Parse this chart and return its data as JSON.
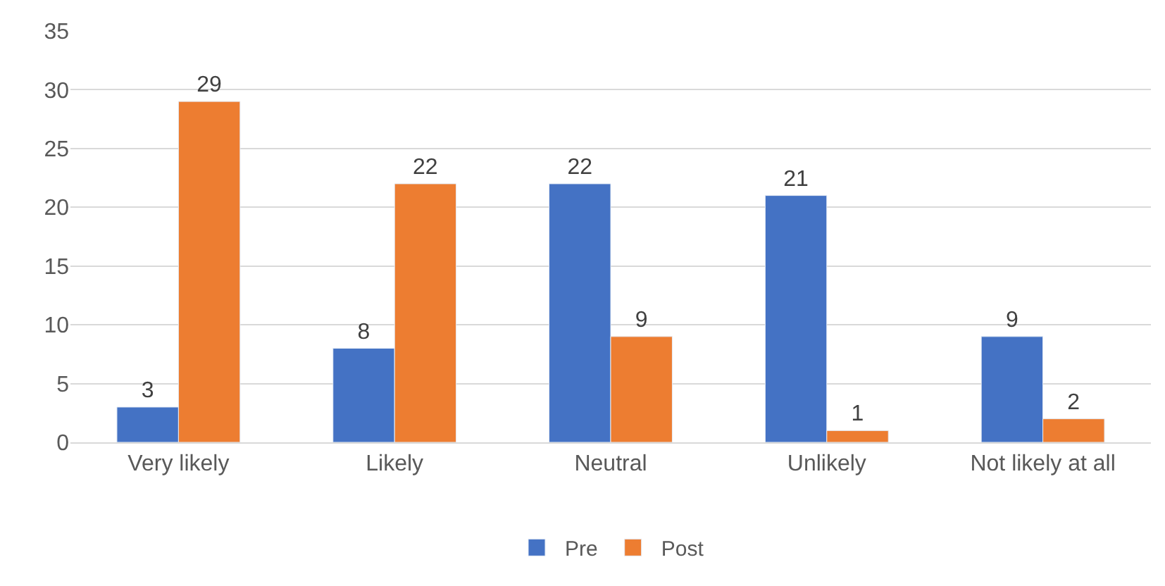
{
  "chart_data": {
    "type": "bar",
    "categories": [
      "Very likely",
      "Likely",
      "Neutral",
      "Unlikely",
      "Not likely at all"
    ],
    "series": [
      {
        "name": "Pre",
        "color": "#4472c4",
        "values": [
          3,
          8,
          22,
          21,
          9
        ]
      },
      {
        "name": "Post",
        "color": "#ed7d31",
        "values": [
          29,
          22,
          9,
          1,
          2
        ]
      }
    ],
    "ylim": [
      0,
      35
    ],
    "yticks": [
      0,
      5,
      10,
      15,
      20,
      25,
      30,
      35
    ],
    "grid": "y",
    "legend": "bottom",
    "data_labels": true
  }
}
